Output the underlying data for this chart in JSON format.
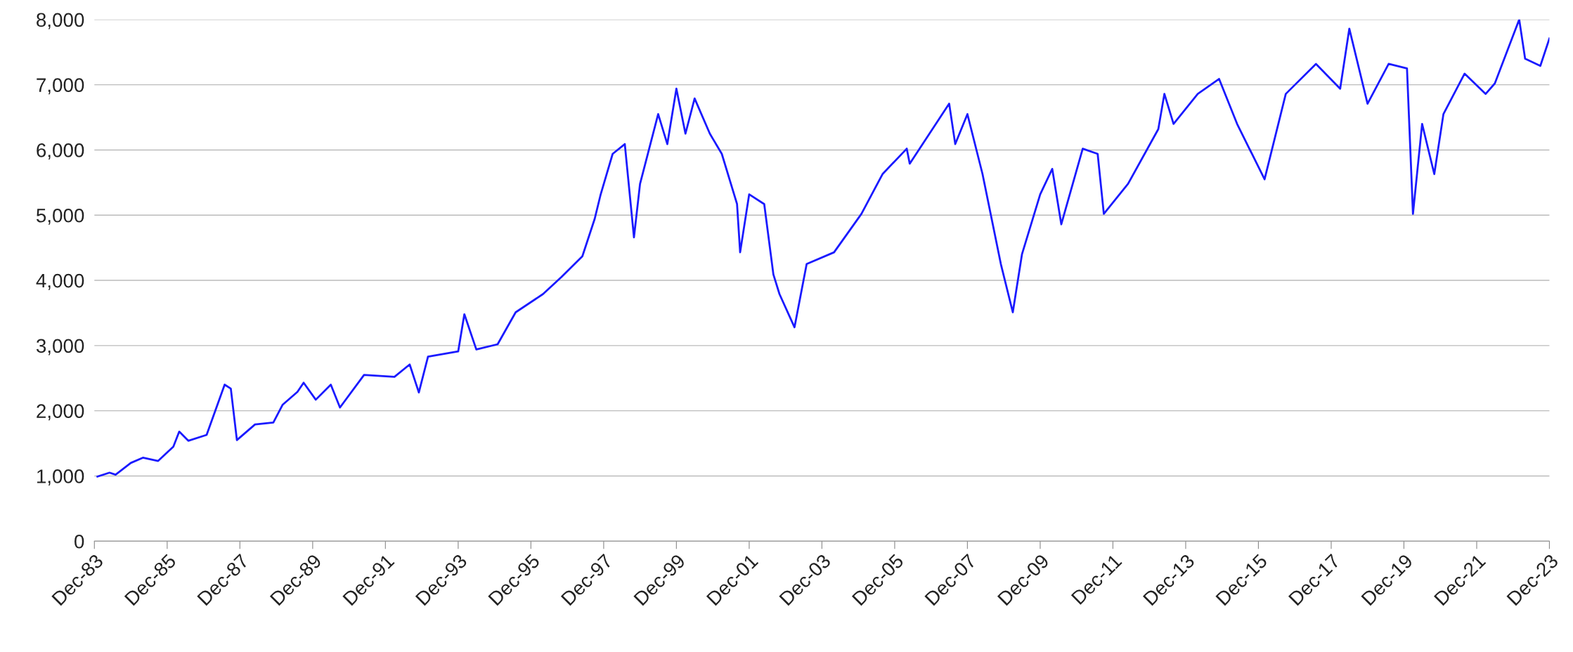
{
  "chart_data": {
    "type": "line",
    "grid": "y",
    "legend": false,
    "marker": "none",
    "line_style": "solid",
    "x": [
      "1984-01",
      "1984-05",
      "1984-07",
      "1984-12",
      "1985-04",
      "1985-09",
      "1986-02",
      "1986-04",
      "1986-07",
      "1987-01",
      "1987-07",
      "1987-09",
      "1987-11",
      "1988-05",
      "1988-11",
      "1989-02",
      "1989-07",
      "1989-09",
      "1990-01",
      "1990-06",
      "1990-09",
      "1991-05",
      "1992-03",
      "1992-08",
      "1992-11",
      "1993-02",
      "1993-12",
      "1994-02",
      "1994-06",
      "1995-01",
      "1995-07",
      "1996-04",
      "1996-10",
      "1997-05",
      "1997-09",
      "1997-11",
      "1998-03",
      "1998-07",
      "1998-10",
      "1998-12",
      "1999-06",
      "1999-09",
      "1999-12",
      "2000-03",
      "2000-06",
      "2000-11",
      "2001-03",
      "2001-08",
      "2001-09",
      "2001-12",
      "2002-05",
      "2002-08",
      "2002-10",
      "2003-03",
      "2003-07",
      "2004-04",
      "2005-01",
      "2005-08",
      "2006-04",
      "2006-05",
      "2007-06",
      "2007-08",
      "2007-12",
      "2008-05",
      "2008-11",
      "2009-03",
      "2009-06",
      "2009-12",
      "2010-04",
      "2010-07",
      "2011-02",
      "2011-07",
      "2011-09",
      "2012-05",
      "2013-03",
      "2013-05",
      "2013-08",
      "2014-04",
      "2014-11",
      "2015-05",
      "2016-02",
      "2016-09",
      "2017-07",
      "2018-03",
      "2018-06",
      "2018-12",
      "2019-07",
      "2020-01",
      "2020-03",
      "2020-06",
      "2020-10",
      "2021-01",
      "2021-08",
      "2022-03",
      "2022-06",
      "2023-02",
      "2023-04",
      "2023-09",
      "2023-12"
    ],
    "series": [
      {
        "color": "#1a1aff",
        "values": [
          990,
          1050,
          1020,
          1200,
          1280,
          1230,
          1450,
          1680,
          1540,
          1630,
          2400,
          2340,
          1550,
          1790,
          1820,
          2090,
          2290,
          2430,
          2170,
          2400,
          2050,
          2550,
          2520,
          2710,
          2280,
          2830,
          2910,
          3480,
          2940,
          3020,
          3510,
          3790,
          4050,
          4370,
          4940,
          5320,
          5940,
          6090,
          4660,
          5480,
          6550,
          6090,
          6940,
          6250,
          6790,
          6250,
          5940,
          5170,
          4430,
          5320,
          5170,
          4090,
          3790,
          3280,
          4250,
          4430,
          5020,
          5630,
          6020,
          5790,
          6710,
          6090,
          6550,
          5630,
          4250,
          3510,
          4400,
          5320,
          5710,
          4860,
          6020,
          5940,
          5020,
          5480,
          6320,
          6860,
          6400,
          6860,
          7090,
          6400,
          5550,
          6860,
          7320,
          6940,
          7860,
          6710,
          7320,
          7250,
          5020,
          6400,
          5630,
          6550,
          7170,
          6860,
          7020,
          8000,
          7400,
          7290,
          7710
        ]
      }
    ],
    "xlim": [
      "1983-12",
      "2023-12"
    ],
    "xticks": [
      {
        "value": "1983-12",
        "label": "Dec-83"
      },
      {
        "value": "1985-12",
        "label": "Dec-85"
      },
      {
        "value": "1987-12",
        "label": "Dec-87"
      },
      {
        "value": "1989-12",
        "label": "Dec-89"
      },
      {
        "value": "1991-12",
        "label": "Dec-91"
      },
      {
        "value": "1993-12",
        "label": "Dec-93"
      },
      {
        "value": "1995-12",
        "label": "Dec-95"
      },
      {
        "value": "1997-12",
        "label": "Dec-97"
      },
      {
        "value": "1999-12",
        "label": "Dec-99"
      },
      {
        "value": "2001-12",
        "label": "Dec-01"
      },
      {
        "value": "2003-12",
        "label": "Dec-03"
      },
      {
        "value": "2005-12",
        "label": "Dec-05"
      },
      {
        "value": "2007-12",
        "label": "Dec-07"
      },
      {
        "value": "2009-12",
        "label": "Dec-09"
      },
      {
        "value": "2011-12",
        "label": "Dec-11"
      },
      {
        "value": "2013-12",
        "label": "Dec-13"
      },
      {
        "value": "2015-12",
        "label": "Dec-15"
      },
      {
        "value": "2017-12",
        "label": "Dec-17"
      },
      {
        "value": "2019-12",
        "label": "Dec-19"
      },
      {
        "value": "2021-12",
        "label": "Dec-21"
      },
      {
        "value": "2023-12",
        "label": "Dec-23"
      }
    ],
    "ylim": [
      0,
      8000
    ],
    "yticks": [
      0,
      {
        "value": 1000,
        "label": "1,000"
      },
      {
        "value": 2000,
        "label": "2,000"
      },
      {
        "value": 3000,
        "label": "3,000"
      },
      {
        "value": 4000,
        "label": "4,000"
      },
      {
        "value": 5000,
        "label": "5,000"
      },
      {
        "value": 6000,
        "label": "6,000"
      },
      {
        "value": 7000,
        "label": "7,000"
      },
      {
        "value": 8000,
        "label": "8,000"
      }
    ]
  }
}
